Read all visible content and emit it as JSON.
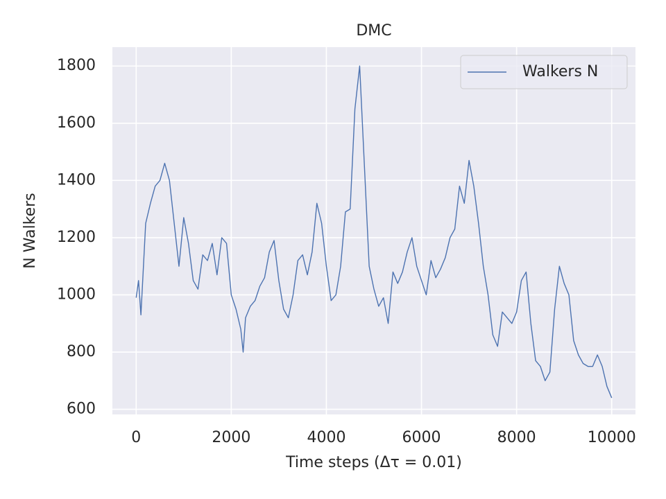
{
  "chart_data": {
    "type": "line",
    "title": "DMC",
    "x_label": "Time steps (Δτ = 0.01)",
    "y_label": "N Walkers",
    "x": [
      0,
      50,
      100,
      200,
      300,
      400,
      500,
      600,
      700,
      800,
      900,
      1000,
      1100,
      1200,
      1300,
      1400,
      1500,
      1600,
      1700,
      1800,
      1900,
      2000,
      2100,
      2200,
      2250,
      2300,
      2400,
      2500,
      2600,
      2700,
      2800,
      2900,
      3000,
      3100,
      3200,
      3300,
      3400,
      3500,
      3600,
      3700,
      3800,
      3900,
      4000,
      4100,
      4200,
      4300,
      4400,
      4500,
      4600,
      4700,
      4800,
      4900,
      5000,
      5100,
      5200,
      5300,
      5400,
      5500,
      5600,
      5700,
      5800,
      5900,
      6000,
      6100,
      6200,
      6300,
      6400,
      6500,
      6600,
      6700,
      6800,
      6900,
      7000,
      7100,
      7200,
      7300,
      7400,
      7500,
      7600,
      7700,
      7800,
      7900,
      8000,
      8100,
      8200,
      8300,
      8400,
      8500,
      8600,
      8700,
      8800,
      8900,
      9000,
      9100,
      9200,
      9300,
      9400,
      9500,
      9600,
      9700,
      9800,
      9900,
      10000
    ],
    "series": [
      {
        "name": "Walkers N",
        "color": "#4c72b0",
        "values": [
          990,
          1050,
          930,
          1250,
          1320,
          1380,
          1400,
          1460,
          1400,
          1250,
          1100,
          1270,
          1180,
          1050,
          1020,
          1140,
          1120,
          1180,
          1070,
          1200,
          1180,
          1000,
          950,
          880,
          800,
          920,
          960,
          980,
          1030,
          1060,
          1150,
          1190,
          1050,
          950,
          920,
          1000,
          1120,
          1140,
          1070,
          1150,
          1320,
          1250,
          1100,
          980,
          1000,
          1100,
          1290,
          1300,
          1650,
          1800,
          1450,
          1100,
          1020,
          960,
          990,
          900,
          1080,
          1040,
          1080,
          1150,
          1200,
          1100,
          1050,
          1000,
          1120,
          1060,
          1090,
          1130,
          1200,
          1230,
          1380,
          1320,
          1470,
          1380,
          1250,
          1100,
          1000,
          860,
          820,
          940,
          920,
          900,
          940,
          1050,
          1080,
          900,
          770,
          750,
          700,
          730,
          950,
          1100,
          1040,
          1000,
          840,
          790,
          760,
          750,
          750,
          790,
          750,
          680,
          640
        ]
      }
    ],
    "xlim": [
      -500,
      10500
    ],
    "ylim": [
      582,
      1866
    ],
    "xticks": [
      0,
      2000,
      4000,
      6000,
      8000,
      10000
    ],
    "yticks": [
      600,
      800,
      1000,
      1200,
      1400,
      1600,
      1800
    ],
    "grid": true,
    "legend": "upper right"
  }
}
